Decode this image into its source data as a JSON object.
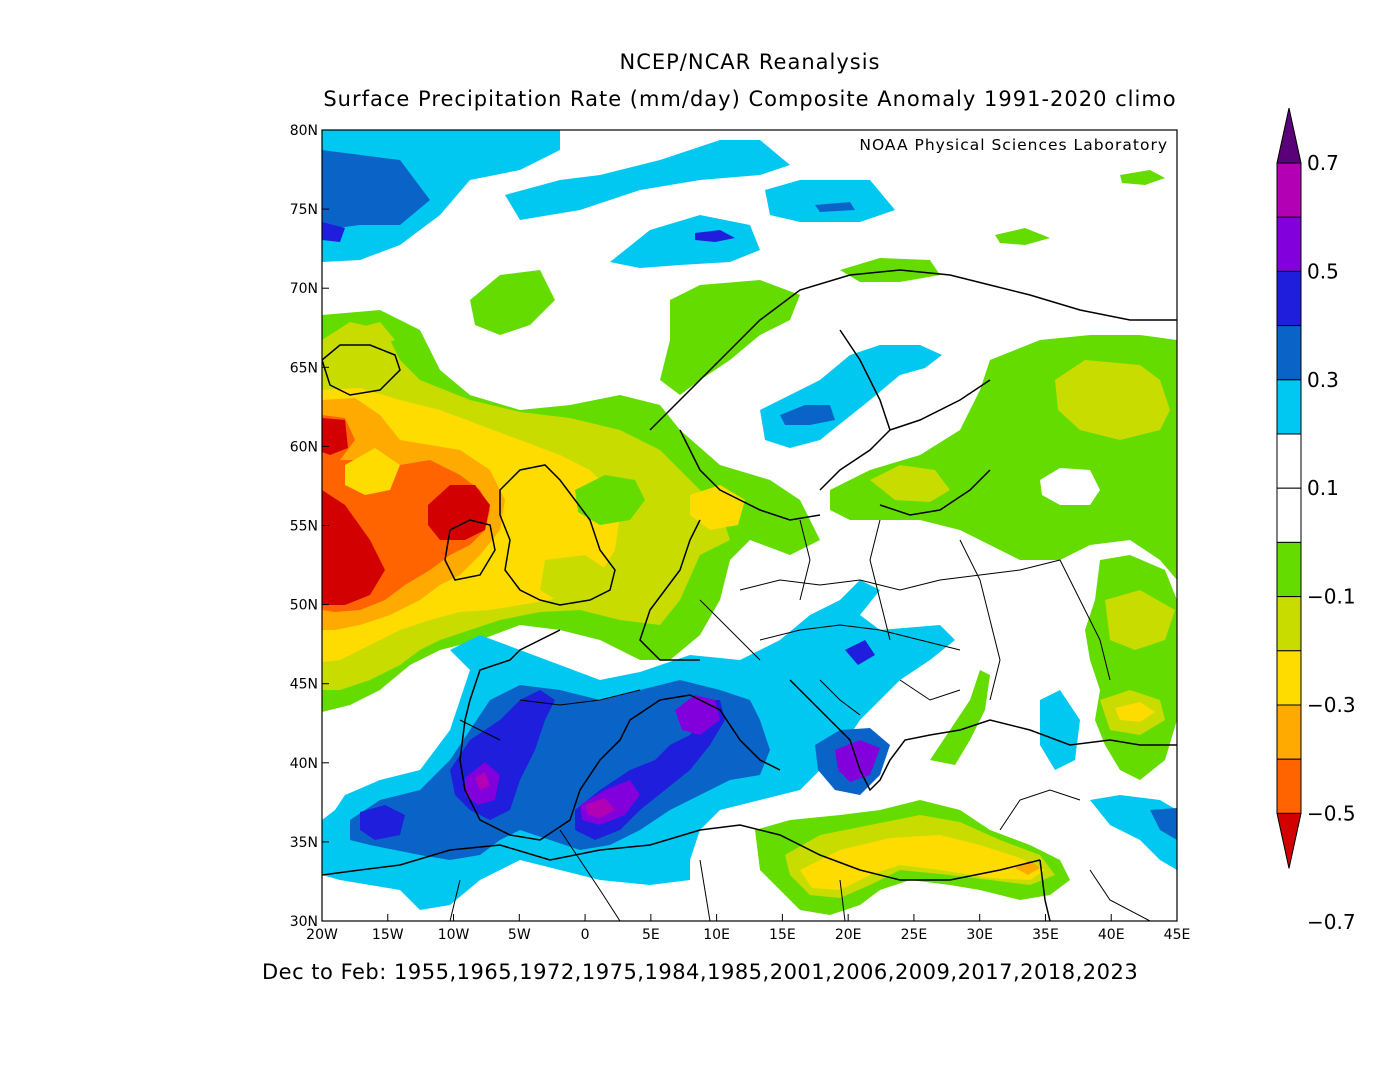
{
  "header": {
    "title": "NCEP/NCAR Reanalysis",
    "subtitle": "Surface Precipitation Rate (mm/day) Composite Anomaly 1991-2020 climo"
  },
  "credit": "NOAA Physical Sciences Laboratory",
  "footer": "Dec to Feb: 1955,1965,1972,1975,1984,1985,2001,2006,2009,2017,2018,2023",
  "map": {
    "lon_range": [
      -20,
      45
    ],
    "lat_range": [
      30,
      80
    ],
    "lat_ticks": [
      "80N",
      "75N",
      "70N",
      "65N",
      "60N",
      "55N",
      "50N",
      "45N",
      "40N",
      "35N",
      "30N"
    ],
    "lon_ticks": [
      "20W",
      "15W",
      "10W",
      "5W",
      "0",
      "5E",
      "10E",
      "15E",
      "20E",
      "25E",
      "30E",
      "35E",
      "40E",
      "45E"
    ]
  },
  "colorbar": {
    "labels": [
      "0.7",
      "0.5",
      "0.3",
      "0.1",
      "-0.1",
      "-0.3",
      "-0.5",
      "-0.7"
    ],
    "colors": [
      "#5a0078",
      "#b400b4",
      "#8200dc",
      "#1e1edc",
      "#0a64c8",
      "#00c8f0",
      "#ffffff",
      "#ffffff",
      "#64dc00",
      "#c8dc00",
      "#ffdc00",
      "#ffaa00",
      "#ff6400",
      "#d20000"
    ]
  },
  "regions": {
    "colors": {
      "green": "#64dc00",
      "yellowgreen": "#c8dc00",
      "yellow": "#ffdc00",
      "orange": "#ffaa00",
      "darkorange": "#ff6400",
      "red": "#d20000",
      "cyan": "#00c8f0",
      "blue": "#0a64c8",
      "darkblue": "#1e1edc",
      "violet": "#8200dc",
      "magenta": "#b400b4"
    }
  }
}
